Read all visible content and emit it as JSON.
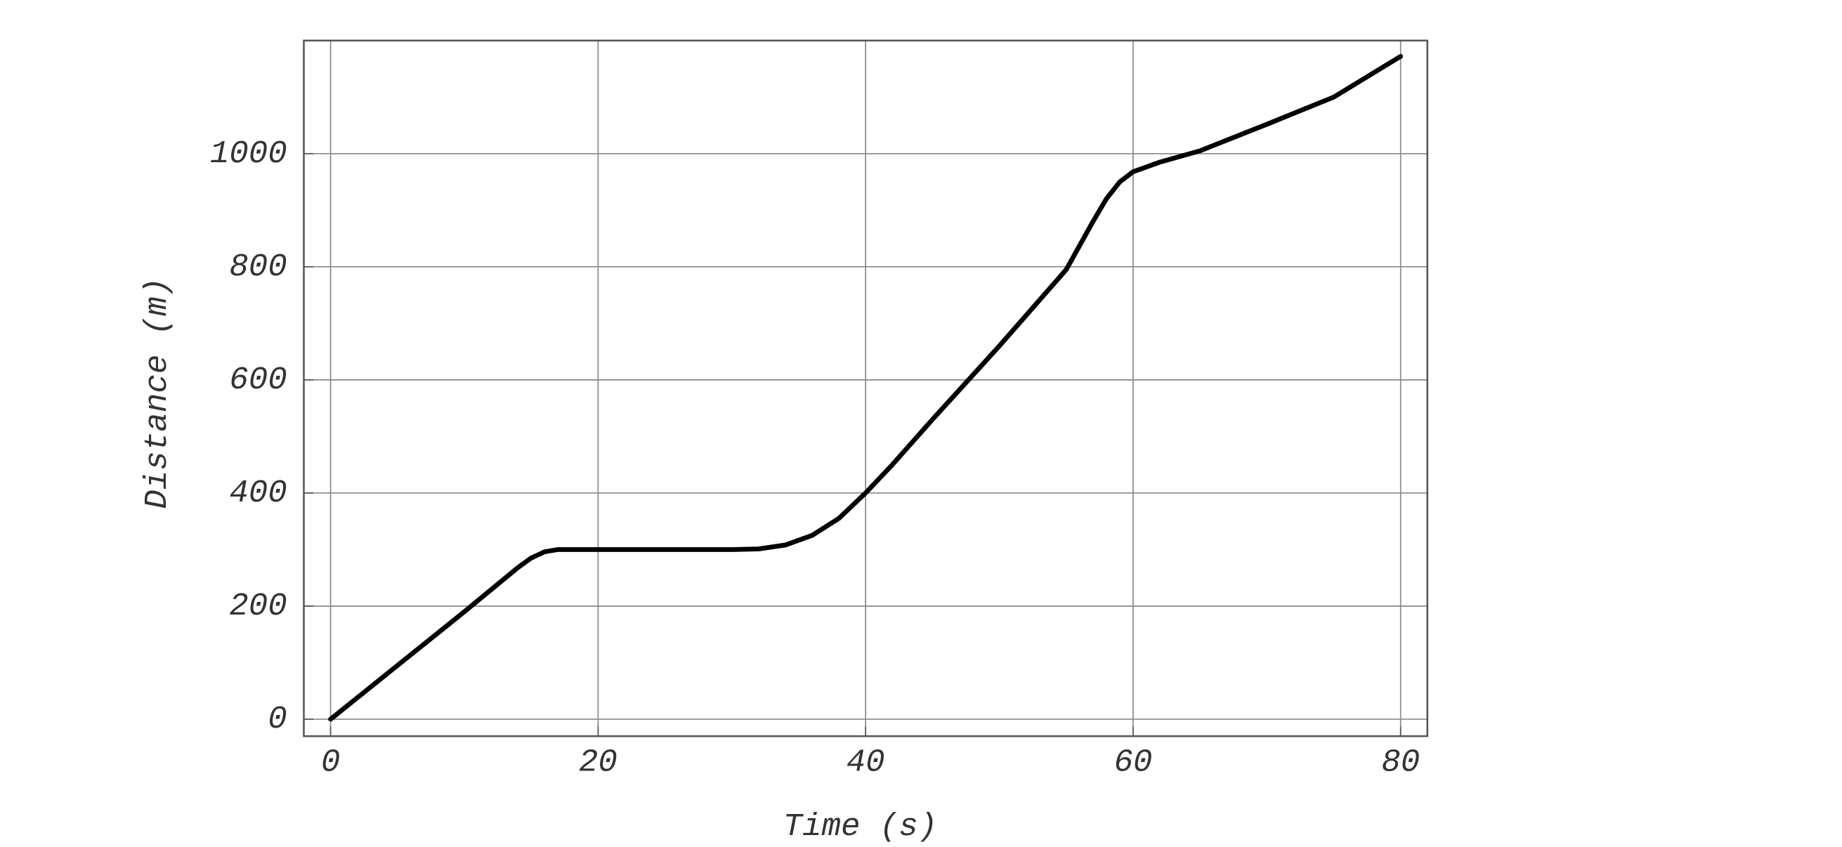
{
  "chart_data": {
    "type": "line",
    "xlabel": "Time (s)",
    "ylabel": "Distance (m)",
    "x": [
      0,
      5,
      10,
      14,
      15,
      16,
      17,
      20,
      25,
      30,
      32,
      34,
      36,
      38,
      40,
      42,
      45,
      50,
      55,
      57,
      58,
      59,
      60,
      62,
      65,
      70,
      75,
      80
    ],
    "series": [
      {
        "color": "#000000",
        "values": [
          0,
          95,
          190,
          268,
          285,
          296,
          300,
          300,
          300,
          300,
          301,
          308,
          325,
          355,
          400,
          450,
          530,
          660,
          795,
          880,
          920,
          950,
          968,
          985,
          1005,
          1052,
          1100,
          1172
        ]
      }
    ],
    "xlim": [
      -2,
      82
    ],
    "ylim": [
      -30,
      1200
    ],
    "xticks": [
      0,
      20,
      40,
      60,
      80
    ],
    "yticks": [
      0,
      200,
      400,
      600,
      800,
      1000
    ],
    "grid": true
  }
}
